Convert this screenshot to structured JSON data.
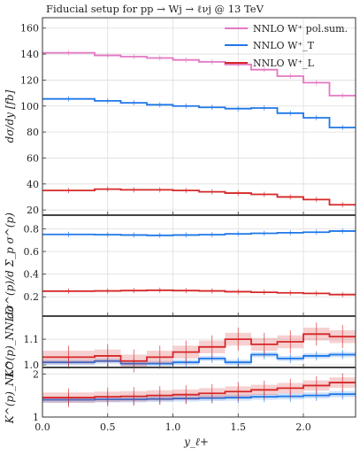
{
  "title": "Fiducial setup for pp → Wj → ℓνj @ 13 TeV",
  "chart_data": {
    "type": "line",
    "x_edges": [
      0.0,
      0.4,
      0.6,
      0.8,
      1.0,
      1.2,
      1.4,
      1.6,
      1.8,
      2.0,
      2.2,
      2.4
    ],
    "xlim": [
      0,
      2.4
    ],
    "x_ticks": [
      "0.0",
      "0.5",
      "1.0",
      "1.5",
      "2.0"
    ],
    "x_tick_values": [
      0,
      0.5,
      1.0,
      1.5,
      2.0
    ],
    "xlabel": "y_ℓ+",
    "colors": {
      "pol": "#e377c2",
      "T": "#1f77e8",
      "L": "#d62728"
    },
    "legend": [
      "NNLO W⁺ pol.sum.",
      "NNLO W⁺_T",
      "NNLO W⁺_L"
    ],
    "panels": [
      {
        "ylabel": "dσ/dy [fb]",
        "ylim": [
          16,
          168
        ],
        "y_ticks": [
          "20",
          "40",
          "60",
          "80",
          "100",
          "120",
          "140",
          "160"
        ],
        "y_tick_values": [
          20,
          40,
          60,
          80,
          100,
          120,
          140,
          160
        ],
        "series": [
          {
            "name": "NNLO W⁺ pol.sum.",
            "key": "pol",
            "values": [
              141,
              139,
              138,
              137,
              135.5,
              134,
              132,
              128,
              123,
              118,
              108
            ],
            "band": false
          },
          {
            "name": "NNLO W⁺_T",
            "key": "T",
            "values": [
              105.5,
              104,
              102.5,
              101,
              100,
              99,
              98,
              98.5,
              94.5,
              91,
              83.5
            ],
            "band": false
          },
          {
            "name": "NNLO W⁺_L",
            "key": "L",
            "values": [
              35,
              36,
              35.5,
              35.5,
              35,
              34,
              33,
              32,
              30,
              28,
              24
            ],
            "band": false
          }
        ]
      },
      {
        "ylabel": "dσ^(p)/d Σ_p σ^(p)",
        "ylim": [
          0.03,
          0.92
        ],
        "y_ticks": [
          "0.2",
          "0.4",
          "0.6",
          "0.8"
        ],
        "y_tick_values": [
          0.2,
          0.4,
          0.6,
          0.8
        ],
        "series": [
          {
            "name": "NNLO W⁺_T",
            "key": "T",
            "values": [
              0.75,
              0.748,
              0.745,
              0.742,
              0.745,
              0.748,
              0.755,
              0.76,
              0.765,
              0.77,
              0.78
            ],
            "band": false
          },
          {
            "name": "NNLO W⁺_L",
            "key": "L",
            "values": [
              0.25,
              0.252,
              0.255,
              0.258,
              0.255,
              0.252,
              0.245,
              0.24,
              0.235,
              0.23,
              0.22
            ],
            "band": false
          }
        ]
      },
      {
        "ylabel": "K^(p)_NNLO",
        "ylim": [
          0.99,
          1.19
        ],
        "y_ticks": [
          "1.0",
          "1.1"
        ],
        "y_tick_values": [
          1.0,
          1.1
        ],
        "series": [
          {
            "name": "NNLO W⁺_T",
            "key": "T",
            "values": [
              1.01,
              1.015,
              1.005,
              1.005,
              1.01,
              1.025,
              1.01,
              1.04,
              1.025,
              1.035,
              1.04
            ],
            "band": true,
            "band_width": 0.01
          },
          {
            "name": "NNLO W⁺_L",
            "key": "L",
            "values": [
              1.03,
              1.035,
              1.015,
              1.03,
              1.05,
              1.07,
              1.1,
              1.08,
              1.09,
              1.12,
              1.11
            ],
            "band": true,
            "band_width": 0.025
          }
        ]
      },
      {
        "ylabel": "K^(p)_NLO",
        "ylim": [
          1.0,
          2.15
        ],
        "y_ticks": [
          "1",
          "2"
        ],
        "y_tick_values": [
          1,
          2
        ],
        "series": [
          {
            "name": "NNLO W⁺_T",
            "key": "T",
            "values": [
              1.4,
              1.41,
              1.41,
              1.42,
              1.43,
              1.44,
              1.45,
              1.47,
              1.48,
              1.5,
              1.53
            ],
            "band": true,
            "band_width": 0.07
          },
          {
            "name": "NNLO W⁺_L",
            "key": "L",
            "values": [
              1.45,
              1.47,
              1.48,
              1.5,
              1.52,
              1.55,
              1.59,
              1.63,
              1.67,
              1.73,
              1.8
            ],
            "band": true,
            "band_width": 0.12
          }
        ]
      }
    ]
  }
}
